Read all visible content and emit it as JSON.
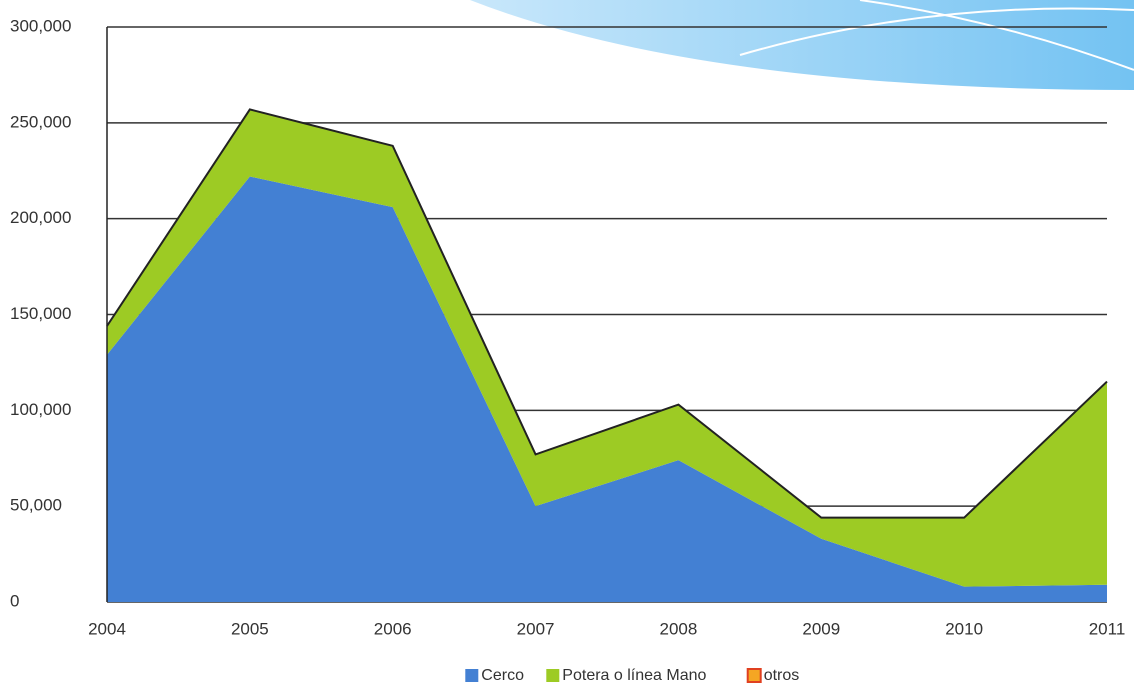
{
  "chart_data": {
    "type": "area",
    "stacked": true,
    "categories": [
      "2004",
      "2005",
      "2006",
      "2007",
      "2008",
      "2009",
      "2010",
      "2011"
    ],
    "series": [
      {
        "name": "Cerco",
        "color": "#4380d3",
        "values": [
          129000,
          222000,
          206000,
          50000,
          74000,
          33000,
          8000,
          9000
        ]
      },
      {
        "name": "Potera o línea Mano",
        "color": "#9dcb24",
        "values": [
          15000,
          35000,
          32000,
          27000,
          29000,
          11000,
          36000,
          106000
        ]
      },
      {
        "name": "otros",
        "color": "#f5a623",
        "values": [
          0,
          0,
          0,
          0,
          0,
          0,
          0,
          0
        ]
      }
    ],
    "ylim": [
      0,
      300000
    ],
    "yticks": [
      0,
      {
        "value": 50000,
        "label": "50,000"
      },
      {
        "value": 100000,
        "label": "100,000"
      },
      {
        "value": 150000,
        "label": "150,000"
      },
      {
        "value": 200000,
        "label": "200,000"
      },
      {
        "value": 250000,
        "label": "250,000"
      },
      {
        "value": 300000,
        "label": "300,000"
      }
    ],
    "grid": true,
    "legend": "bottom"
  }
}
